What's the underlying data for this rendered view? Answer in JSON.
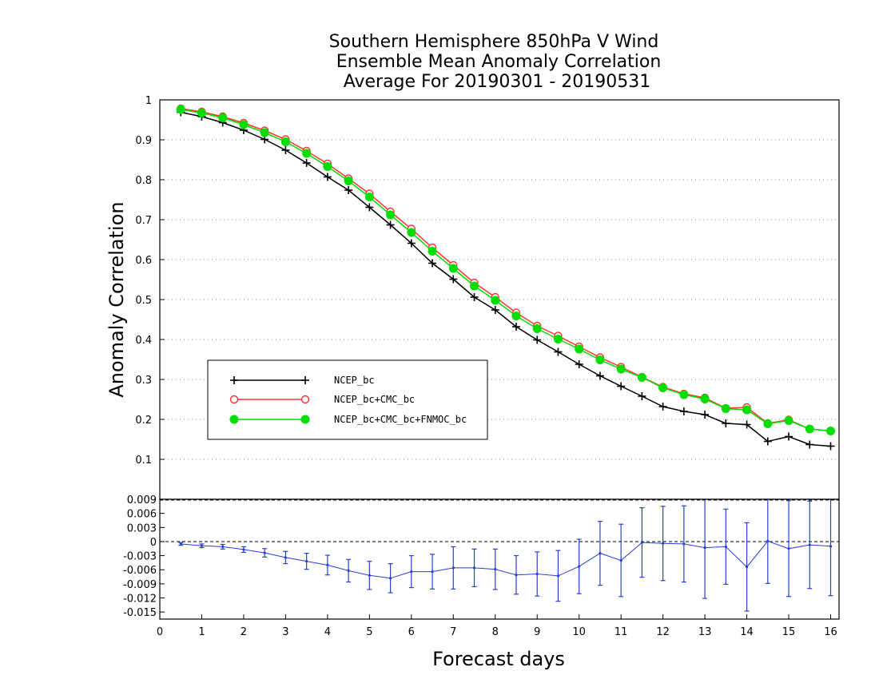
{
  "chart_data": [
    {
      "type": "line",
      "title": [
        "Southern Hemisphere 850hPa V Wind",
        "Ensemble Mean Anomaly Correlation",
        "Average For 20190301 - 20190531"
      ],
      "ylabel": "Anomaly Correlation",
      "xlim": [
        0,
        16.2
      ],
      "ylim": [
        0,
        1
      ],
      "yticks": [
        "0.1",
        "0.2",
        "0.3",
        "0.4",
        "0.5",
        "0.6",
        "0.7",
        "0.8",
        "0.9",
        "1"
      ],
      "grid": "horizontal dotted",
      "legend_position": "lower-left",
      "x": [
        0.5,
        1,
        1.5,
        2,
        2.5,
        3,
        3.5,
        4,
        4.5,
        5,
        5.5,
        6,
        6.5,
        7,
        7.5,
        8,
        8.5,
        9,
        9.5,
        10,
        10.5,
        11,
        11.5,
        12,
        12.5,
        13,
        13.5,
        14,
        14.5,
        15,
        15.5,
        16
      ],
      "series": [
        {
          "name": "NCEP_bc",
          "color": "#000000",
          "marker": "plus",
          "values": [
            0.969,
            0.958,
            0.943,
            0.924,
            0.901,
            0.874,
            0.842,
            0.807,
            0.774,
            0.731,
            0.687,
            0.641,
            0.591,
            0.551,
            0.506,
            0.474,
            0.432,
            0.399,
            0.369,
            0.338,
            0.309,
            0.283,
            0.258,
            0.232,
            0.22,
            0.212,
            0.19,
            0.187,
            0.145,
            0.157,
            0.137,
            0.133
          ]
        },
        {
          "name": "NCEP_bc+CMC_bc",
          "color": "#ff3333",
          "marker": "open-circle",
          "values": [
            0.978,
            0.97,
            0.958,
            0.942,
            0.923,
            0.901,
            0.872,
            0.84,
            0.803,
            0.765,
            0.72,
            0.677,
            0.63,
            0.586,
            0.542,
            0.506,
            0.467,
            0.434,
            0.409,
            0.382,
            0.355,
            0.331,
            0.306,
            0.281,
            0.264,
            0.254,
            0.228,
            0.23,
            0.19,
            0.199,
            0.176,
            0.171
          ]
        },
        {
          "name": "NCEP_bc+CMC_bc+FNMOC_bc",
          "color": "#00dd00",
          "marker": "filled-circle",
          "values": [
            0.976,
            0.967,
            0.955,
            0.938,
            0.918,
            0.895,
            0.866,
            0.833,
            0.797,
            0.757,
            0.712,
            0.668,
            0.621,
            0.578,
            0.534,
            0.498,
            0.459,
            0.427,
            0.401,
            0.376,
            0.349,
            0.326,
            0.305,
            0.279,
            0.262,
            0.251,
            0.227,
            0.224,
            0.189,
            0.197,
            0.176,
            0.171
          ]
        }
      ]
    },
    {
      "type": "line",
      "xlabel": "Forecast days",
      "xlim": [
        0,
        16.2
      ],
      "ylim": [
        -0.0165,
        0.009
      ],
      "xticks": [
        "0",
        "1",
        "2",
        "3",
        "4",
        "5",
        "6",
        "7",
        "8",
        "9",
        "10",
        "11",
        "12",
        "13",
        "14",
        "15",
        "16"
      ],
      "yticks": [
        "0.009",
        "0.006",
        "0.003",
        "0",
        "-0.003",
        "-0.006",
        "-0.009",
        "-0.012",
        "-0.015"
      ],
      "x": [
        0.5,
        1,
        1.5,
        2,
        2.5,
        3,
        3.5,
        4,
        4.5,
        5,
        5.5,
        6,
        6.5,
        7,
        7.5,
        8,
        8.5,
        9,
        9.5,
        10,
        10.5,
        11,
        11.5,
        12,
        12.5,
        13,
        13.5,
        14,
        14.5,
        15,
        15.5,
        16
      ],
      "series": [
        {
          "color": "#2a3fd6",
          "marker": "error-bar",
          "values": [
            -0.0005,
            -0.0009,
            -0.0011,
            -0.0017,
            -0.0024,
            -0.0034,
            -0.0042,
            -0.005,
            -0.0062,
            -0.0072,
            -0.0078,
            -0.0064,
            -0.0064,
            -0.0056,
            -0.0056,
            -0.0059,
            -0.0071,
            -0.0069,
            -0.0073,
            -0.0053,
            -0.0025,
            -0.004,
            -0.0002,
            -0.0004,
            -0.0005,
            -0.0013,
            -0.0011,
            -0.0054,
            0.0001,
            -0.0015,
            -0.0007,
            -0.001
          ],
          "errors": [
            0.0003,
            0.0004,
            0.0005,
            0.0006,
            0.0009,
            0.0013,
            0.0017,
            0.0021,
            0.0024,
            0.003,
            0.0031,
            0.0034,
            0.0037,
            0.0045,
            0.004,
            0.0043,
            0.0041,
            0.0047,
            0.0054,
            0.0058,
            0.0068,
            0.0077,
            0.0074,
            0.0079,
            0.0081,
            0.0108,
            0.008,
            0.0094,
            0.009,
            0.0102,
            0.0093,
            0.0105
          ]
        }
      ]
    }
  ]
}
